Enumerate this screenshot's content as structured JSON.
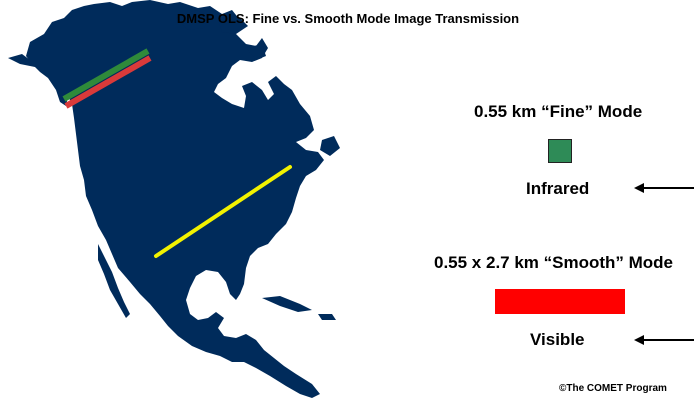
{
  "title": "DMSP OLS: Fine vs. Smooth Mode Image Transmission",
  "legend": {
    "fine": {
      "heading": "0.55 km “Fine” Mode",
      "channel_label": "Infrared",
      "swatch_color": "#2e8b57"
    },
    "smooth": {
      "heading": "0.55 x 2.7 km “Smooth” Mode",
      "channel_label": "Visible",
      "swatch_color": "#ff0000"
    }
  },
  "map": {
    "land_color": "#002b5b",
    "scan_lines": [
      {
        "name": "fine-mode-swath",
        "colors": [
          "#3a8c3a",
          "#d23a3a"
        ]
      },
      {
        "name": "smooth-mode-swath",
        "color": "#f2f200"
      }
    ]
  },
  "copyright": "©The COMET Program"
}
